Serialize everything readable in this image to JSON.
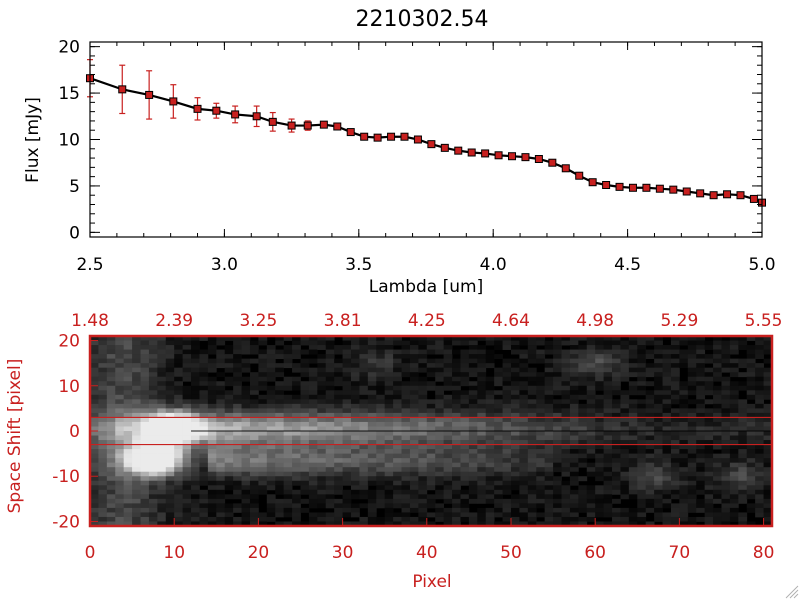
{
  "chart_data": [
    {
      "type": "line",
      "title": "2210302.54",
      "xlabel": "Lambda [um]",
      "ylabel": "Flux [mJy]",
      "xlim": [
        2.5,
        5.0
      ],
      "ylim": [
        -0.5,
        20.5
      ],
      "xticks": [
        "2.5",
        "3.0",
        "3.5",
        "4.0",
        "4.5",
        "5.0"
      ],
      "yticks": [
        "0",
        "5",
        "10",
        "15",
        "20"
      ],
      "line_color": "#000000",
      "marker_color": "#c8201f",
      "errorbar_color": "#c8201f",
      "series": [
        {
          "x": [
            2.5,
            2.62,
            2.72,
            2.81,
            2.9,
            2.97,
            3.04,
            3.12,
            3.18,
            3.25,
            3.31,
            3.37,
            3.42,
            3.47,
            3.52,
            3.57,
            3.62,
            3.67,
            3.72,
            3.77,
            3.82,
            3.87,
            3.92,
            3.97,
            4.02,
            4.07,
            4.12,
            4.17,
            4.22,
            4.27,
            4.32,
            4.37,
            4.42,
            4.47,
            4.52,
            4.57,
            4.62,
            4.67,
            4.72,
            4.77,
            4.82,
            4.87,
            4.92,
            4.97,
            5.0
          ],
          "y": [
            16.6,
            15.4,
            14.8,
            14.1,
            13.3,
            13.1,
            12.7,
            12.5,
            11.9,
            11.5,
            11.5,
            11.6,
            11.4,
            10.8,
            10.3,
            10.2,
            10.3,
            10.3,
            10.0,
            9.5,
            9.1,
            8.8,
            8.6,
            8.5,
            8.3,
            8.2,
            8.1,
            7.9,
            7.5,
            6.9,
            6.1,
            5.4,
            5.1,
            4.9,
            4.8,
            4.8,
            4.7,
            4.6,
            4.4,
            4.2,
            4.0,
            4.1,
            4.0,
            3.6,
            3.2
          ],
          "err": [
            2.0,
            2.6,
            2.6,
            1.8,
            1.2,
            0.8,
            0.9,
            1.1,
            1.0,
            0.7,
            0.5,
            0.3,
            0.3,
            0.3,
            0.2,
            0.2,
            0.2,
            0.2,
            0.2,
            0.2,
            0.2,
            0.2,
            0.2,
            0.2,
            0.2,
            0.2,
            0.2,
            0.2,
            0.2,
            0.2,
            0.2,
            0.2,
            0.2,
            0.2,
            0.2,
            0.2,
            0.2,
            0.2,
            0.2,
            0.2,
            0.2,
            0.2,
            0.2,
            0.2,
            0.2
          ]
        }
      ]
    },
    {
      "type": "heatmap",
      "xlabel": "Pixel",
      "ylabel": "Space Shift [pixel]",
      "xlim": [
        0,
        81
      ],
      "ylim": [
        -21,
        21
      ],
      "xticks": [
        "0",
        "10",
        "20",
        "30",
        "40",
        "50",
        "60",
        "70",
        "80"
      ],
      "yticks": [
        "-20",
        "-10",
        "0",
        "10",
        "20"
      ],
      "top_axis_ticks": [
        "1.48",
        "2.39",
        "3.25",
        "3.81",
        "4.25",
        "4.64",
        "4.98",
        "5.29",
        "5.55"
      ],
      "reference_lines_y": [
        3,
        -3
      ],
      "axis_color": "#c8201f",
      "colormap": "grayscale",
      "features": [
        {
          "x": 10,
          "y": 0.5,
          "peak": 1.0
        },
        {
          "x": 7.5,
          "y": -6,
          "peak": 0.8
        },
        {
          "x": 60,
          "y": 15,
          "peak": 0.25
        },
        {
          "x": 67,
          "y": -10,
          "peak": 0.25
        },
        {
          "x": 77,
          "y": -10,
          "peak": 0.22
        },
        {
          "x": 34,
          "y": 15,
          "peak": 0.15
        }
      ]
    }
  ]
}
